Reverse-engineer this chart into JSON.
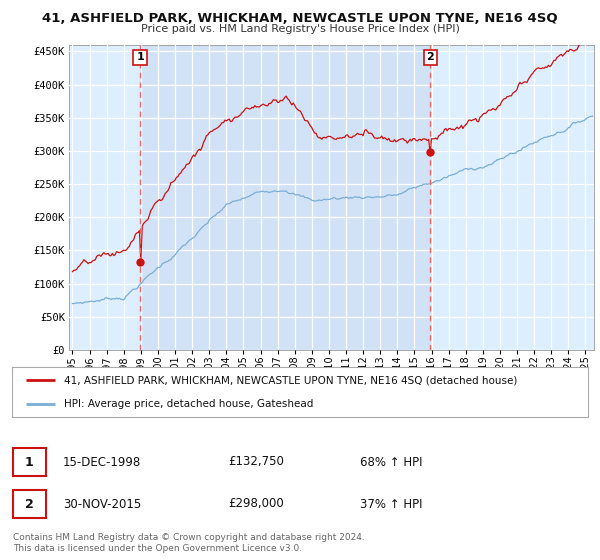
{
  "title": "41, ASHFIELD PARK, WHICKHAM, NEWCASTLE UPON TYNE, NE16 4SQ",
  "subtitle": "Price paid vs. HM Land Registry's House Price Index (HPI)",
  "hpi_color": "#7aaed6",
  "price_color": "#cc1111",
  "plot_bg": "#ddeeff",
  "purchase1_date": 1998.96,
  "purchase1_price": 132750,
  "purchase1_label": "1",
  "purchase2_date": 2015.92,
  "purchase2_price": 298000,
  "purchase2_label": "2",
  "ylim": [
    0,
    460000
  ],
  "xlim": [
    1994.8,
    2025.5
  ],
  "ytick_values": [
    0,
    50000,
    100000,
    150000,
    200000,
    250000,
    300000,
    350000,
    400000,
    450000
  ],
  "ytick_labels": [
    "£0",
    "£50K",
    "£100K",
    "£150K",
    "£200K",
    "£250K",
    "£300K",
    "£350K",
    "£400K",
    "£450K"
  ],
  "xtick_years": [
    1995,
    1996,
    1997,
    1998,
    1999,
    2000,
    2001,
    2002,
    2003,
    2004,
    2005,
    2006,
    2007,
    2008,
    2009,
    2010,
    2011,
    2012,
    2013,
    2014,
    2015,
    2016,
    2017,
    2018,
    2019,
    2020,
    2021,
    2022,
    2023,
    2024,
    2025
  ],
  "legend_line1": "41, ASHFIELD PARK, WHICKHAM, NEWCASTLE UPON TYNE, NE16 4SQ (detached house)",
  "legend_line2": "HPI: Average price, detached house, Gateshead",
  "annot1_date": "15-DEC-1998",
  "annot1_price": "£132,750",
  "annot1_hpi": "68% ↑ HPI",
  "annot2_date": "30-NOV-2015",
  "annot2_price": "£298,000",
  "annot2_hpi": "37% ↑ HPI",
  "footer": "Contains HM Land Registry data © Crown copyright and database right 2024.\nThis data is licensed under the Open Government Licence v3.0."
}
